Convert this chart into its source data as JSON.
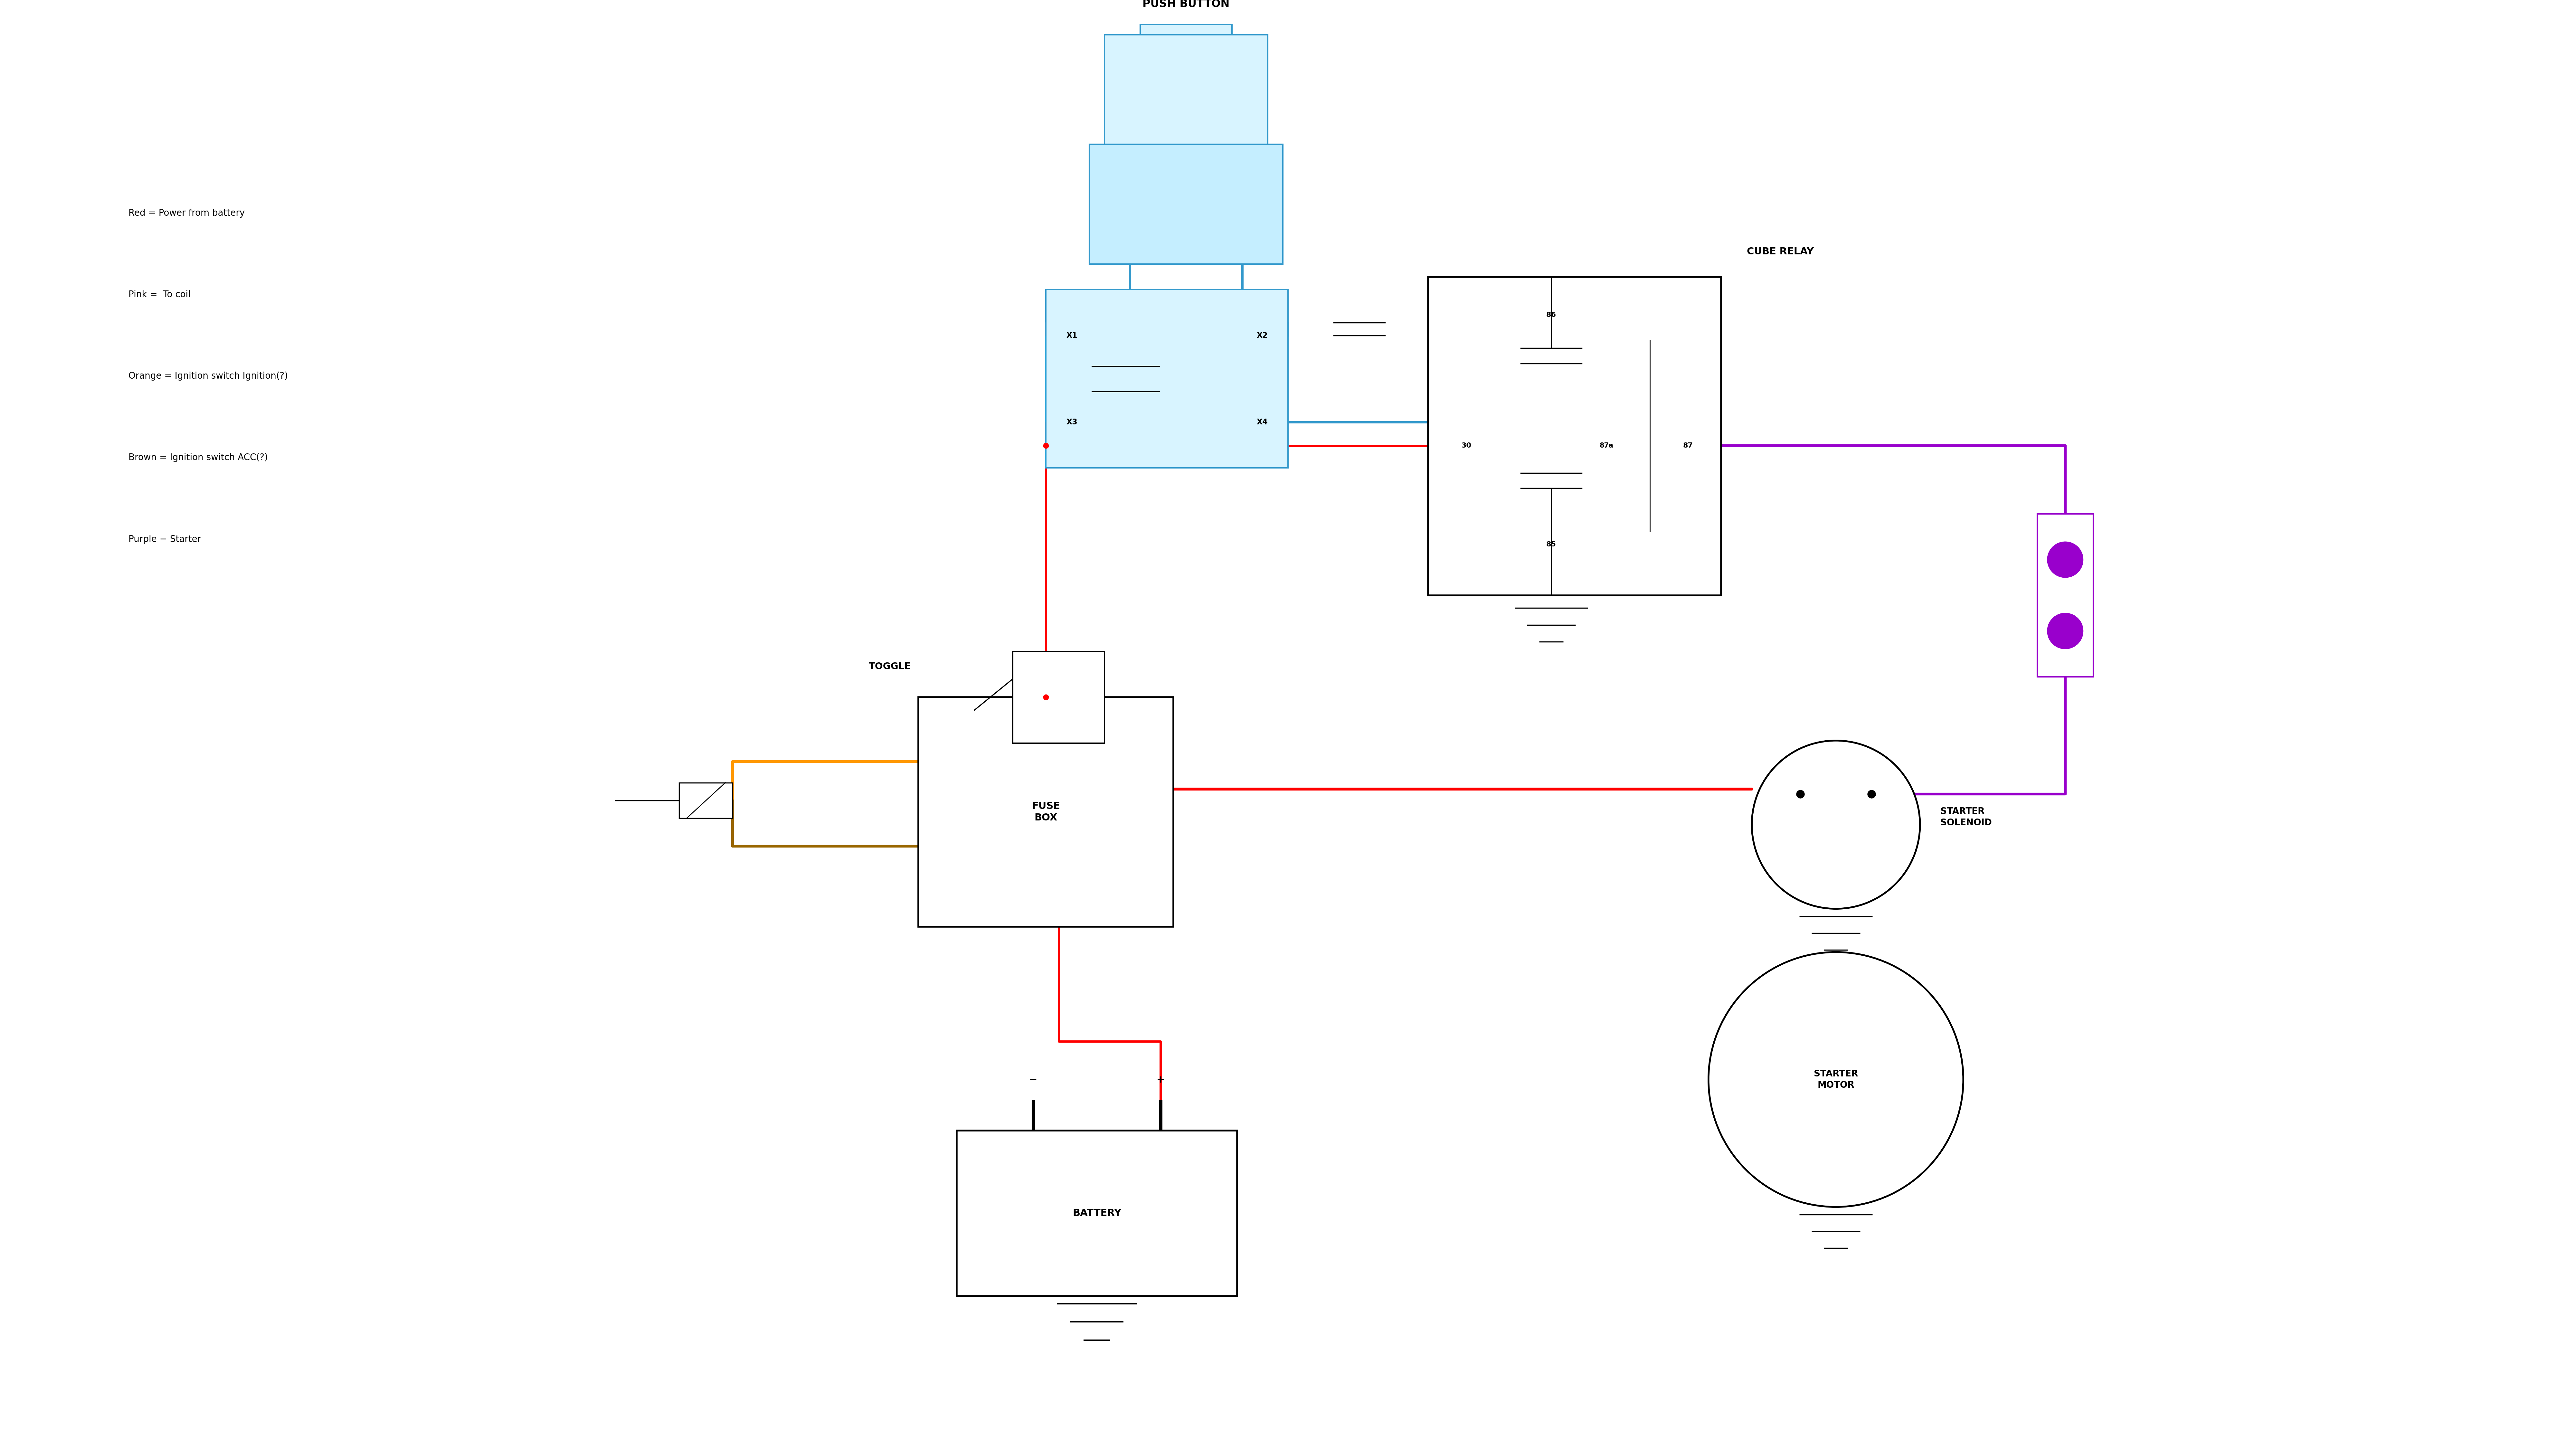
{
  "bg_color": "#ffffff",
  "legend_lines": [
    "Red = Power from battery",
    "Pink =  To coil",
    "Orange = Ignition switch Ignition(?)",
    "Brown = Ignition switch ACC(?)",
    "Purple = Starter"
  ],
  "push_button_label": "PUSH BUTTON",
  "cube_relay_label": "CUBE RELAY",
  "toggle_label": "TOGGLE",
  "fuse_box_label": "FUSE\nBOX",
  "battery_label": "BATTERY",
  "starter_solenoid_label": "STARTER\nSOLENOID",
  "starter_motor_label": "STARTER\nMOTOR",
  "RED": "#ff0000",
  "BLUE": "#3399cc",
  "ORANGE": "#ff9900",
  "BROWN": "#996600",
  "PURPLE": "#9900cc",
  "BLACK": "#000000",
  "lw_wire": 5.0,
  "lw_comp": 4.0
}
